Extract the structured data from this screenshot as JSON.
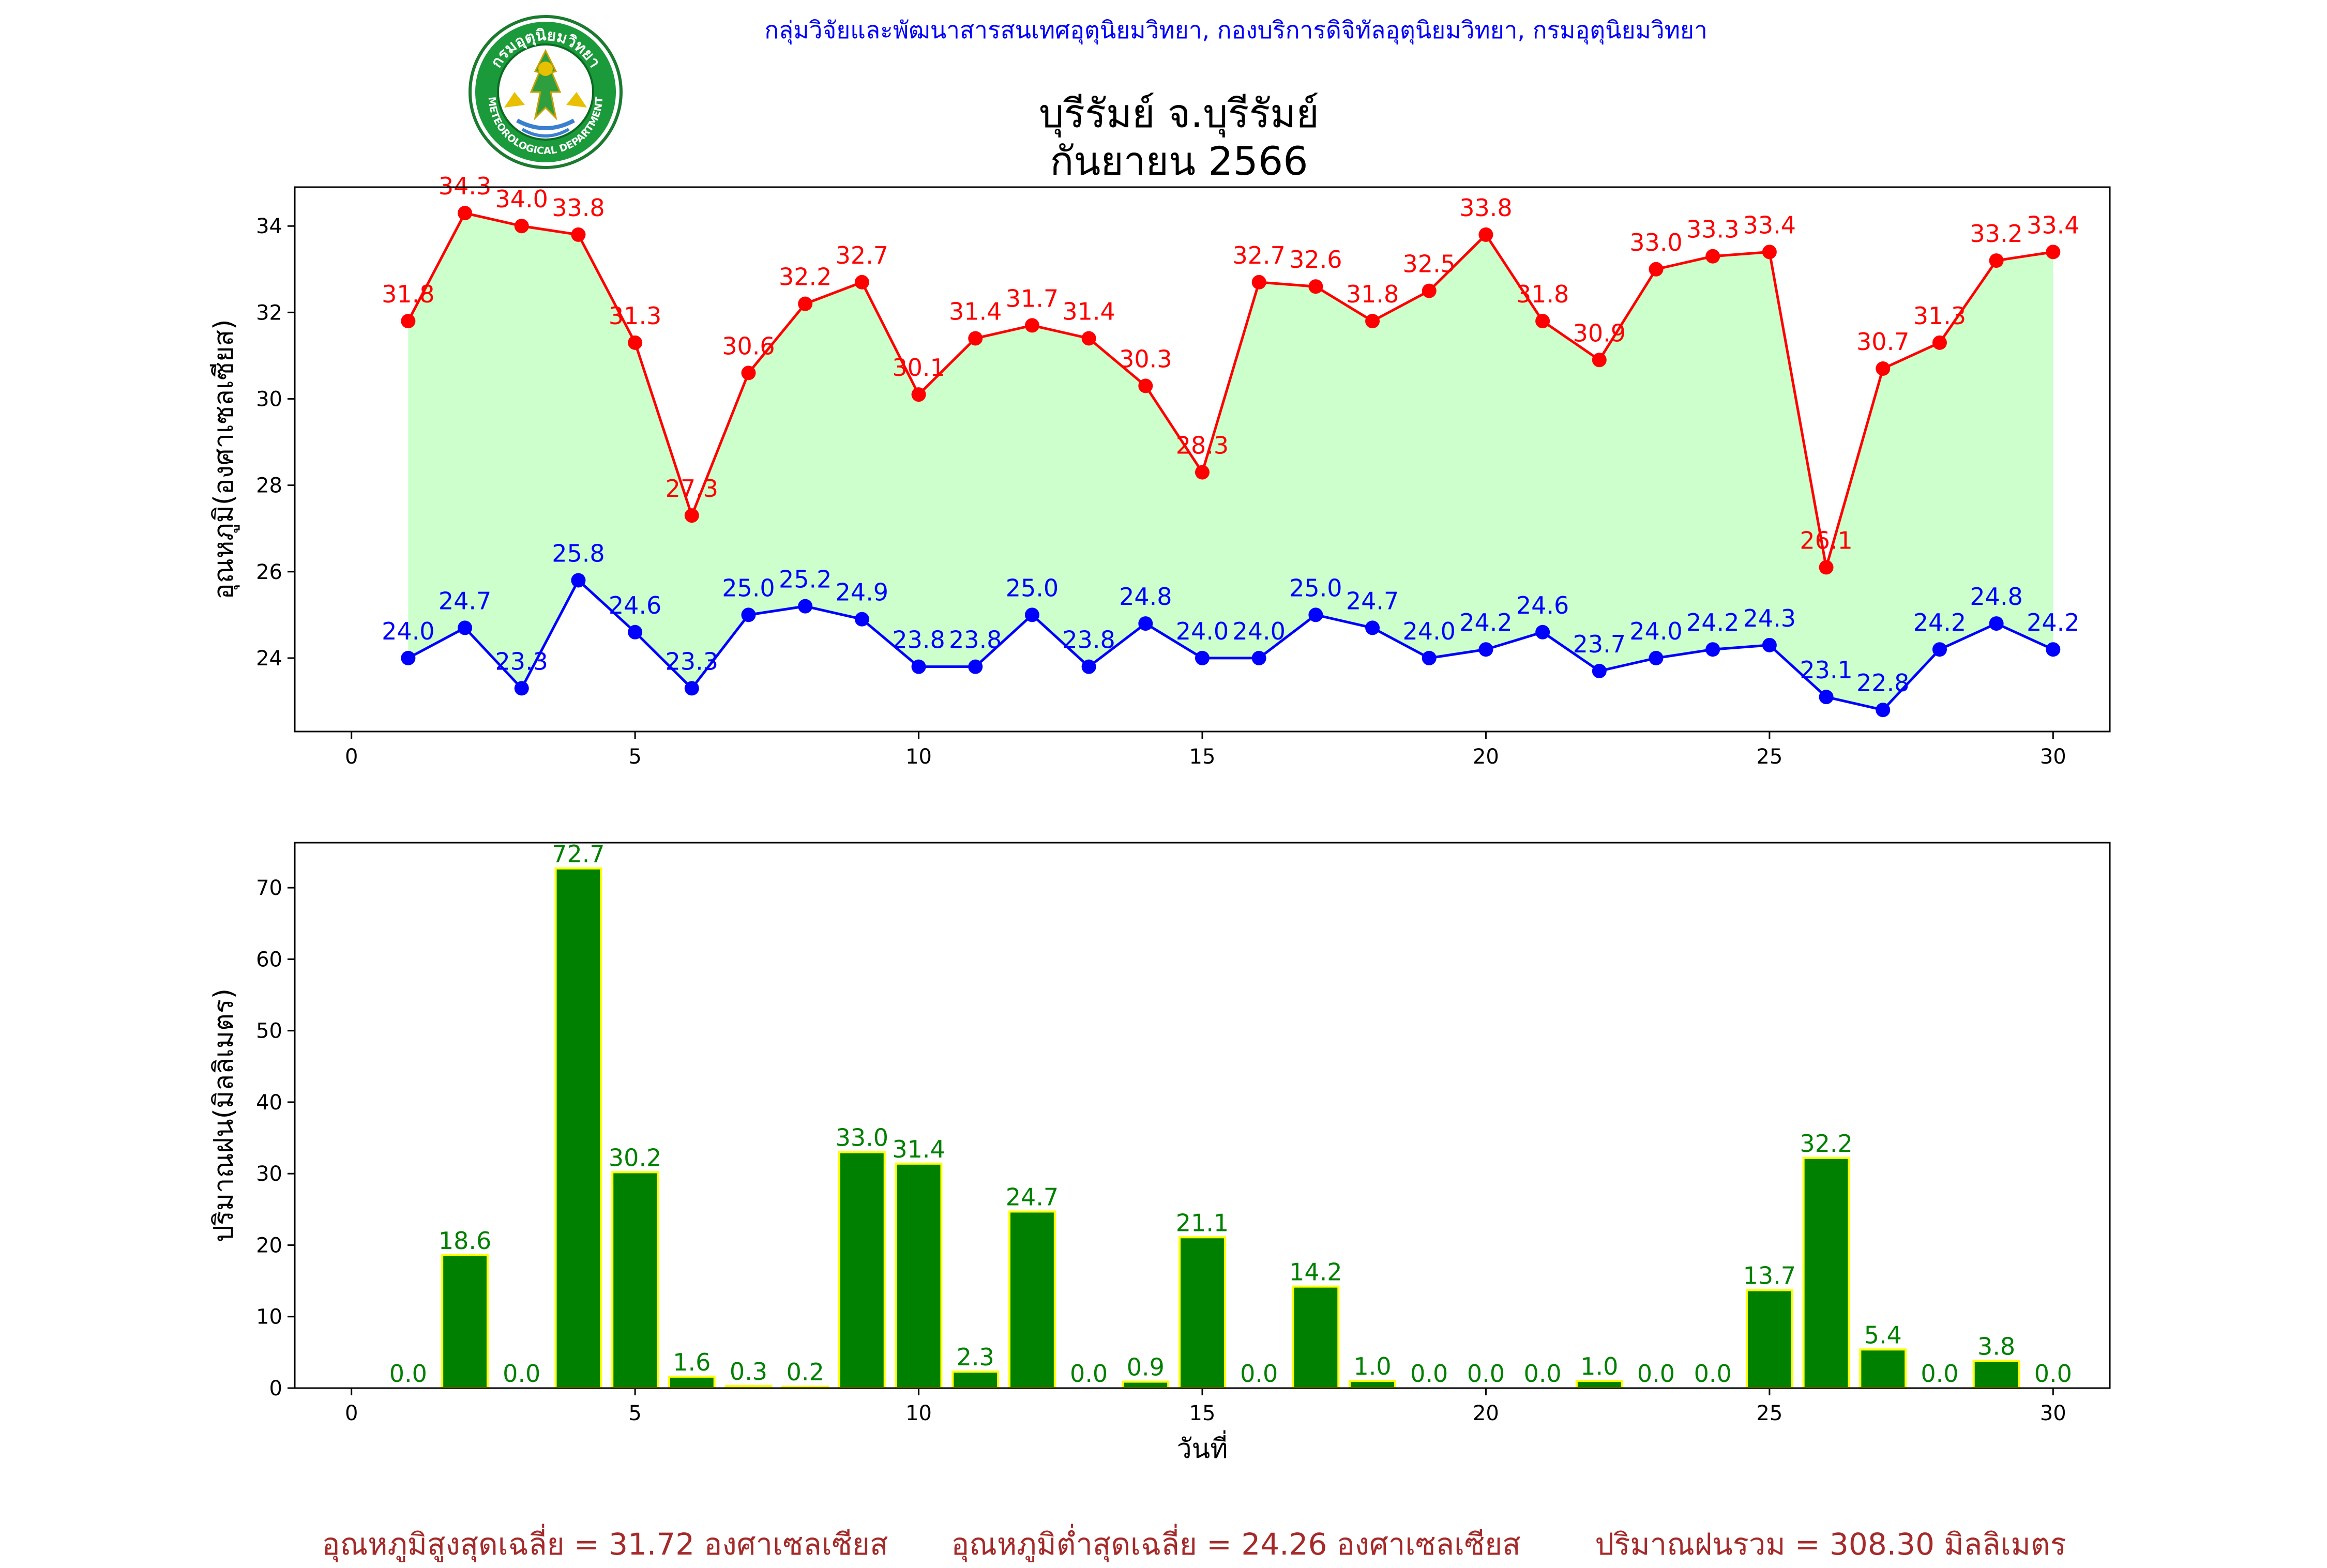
{
  "header": {
    "organization": "กลุ่มวิจัยและพัฒนาสารสนเทศอุตุนิยมวิทยา, กองบริการดิจิทัลอุตุนิยมวิทยา, กรมอุตุนิยมวิทยา",
    "title_line1": "บุรีรัมย์ จ.บุรีรัมย์",
    "title_line2": "กันยายน 2566",
    "logo": {
      "icon": "meteorological-department-seal-icon",
      "text_top": "กรมอุตุนิยมวิทยา",
      "text_bottom": "METEOROLOGICAL DEPARTMENT"
    }
  },
  "colors": {
    "max_temp": "#ff0000",
    "min_temp": "#0000ff",
    "fill": "#ccffcc",
    "rain_bar": "#008000",
    "rain_edge": "#ffff00",
    "rain_label": "#008000",
    "footer_text": "#a52a2a",
    "header_text": "#0000ff"
  },
  "chart_data": [
    {
      "type": "line",
      "ylabel": "อุณหภูมิ(องศาเซลเซียส)",
      "xlabel": "",
      "xlim": [
        -1,
        31
      ],
      "ylim": [
        22.3,
        34.9
      ],
      "xticks": [
        0,
        5,
        10,
        15,
        20,
        25,
        30
      ],
      "yticks": [
        24,
        26,
        28,
        30,
        32,
        34
      ],
      "grid": false,
      "x": [
        1,
        2,
        3,
        4,
        5,
        6,
        7,
        8,
        9,
        10,
        11,
        12,
        13,
        14,
        15,
        16,
        17,
        18,
        19,
        20,
        21,
        22,
        23,
        24,
        25,
        26,
        27,
        28,
        29,
        30
      ],
      "series": [
        {
          "key": "max",
          "values": [
            31.8,
            34.3,
            34.0,
            33.8,
            31.3,
            27.3,
            30.6,
            32.2,
            32.7,
            30.1,
            31.4,
            31.7,
            31.4,
            30.3,
            28.3,
            32.7,
            32.6,
            31.8,
            32.5,
            33.8,
            31.8,
            30.9,
            33.0,
            33.3,
            33.4,
            26.1,
            30.7,
            31.3,
            33.2,
            33.4
          ]
        },
        {
          "key": "min",
          "values": [
            24.0,
            24.7,
            23.3,
            25.8,
            24.6,
            23.3,
            25.0,
            25.2,
            24.9,
            23.8,
            23.8,
            25.0,
            23.8,
            24.8,
            24.0,
            24.0,
            25.0,
            24.7,
            24.0,
            24.2,
            24.6,
            23.7,
            24.0,
            24.2,
            24.3,
            23.1,
            22.8,
            24.2,
            24.8,
            24.2
          ]
        }
      ],
      "fill_between": [
        "max",
        "min"
      ]
    },
    {
      "type": "bar",
      "ylabel": "ปริมาณฝน(มิลลิเมตร)",
      "xlabel": "วันที่",
      "xlim": [
        -1,
        31
      ],
      "ylim": [
        0,
        76.3
      ],
      "xticks": [
        0,
        5,
        10,
        15,
        20,
        25,
        30
      ],
      "yticks": [
        0,
        10,
        20,
        30,
        40,
        50,
        60,
        70
      ],
      "grid": false,
      "x": [
        1,
        2,
        3,
        4,
        5,
        6,
        7,
        8,
        9,
        10,
        11,
        12,
        13,
        14,
        15,
        16,
        17,
        18,
        19,
        20,
        21,
        22,
        23,
        24,
        25,
        26,
        27,
        28,
        29,
        30
      ],
      "values": [
        0.0,
        18.6,
        0.0,
        72.7,
        30.2,
        1.6,
        0.3,
        0.2,
        33.0,
        31.4,
        2.3,
        24.7,
        0.0,
        0.9,
        21.1,
        0.0,
        14.2,
        1.0,
        0.0,
        0.0,
        0.0,
        1.0,
        0.0,
        0.0,
        13.7,
        32.2,
        5.4,
        0.0,
        3.8,
        0.0
      ]
    }
  ],
  "footer": {
    "avg_max": "อุณหภูมิสูงสุดเฉลี่ย = 31.72 องศาเซลเซียส",
    "avg_min": "อุณหภูมิต่ำสุดเฉลี่ย = 24.26 องศาเซลเซียส",
    "total_rain": "ปริมาณฝนรวม = 308.30 มิลลิเมตร"
  }
}
